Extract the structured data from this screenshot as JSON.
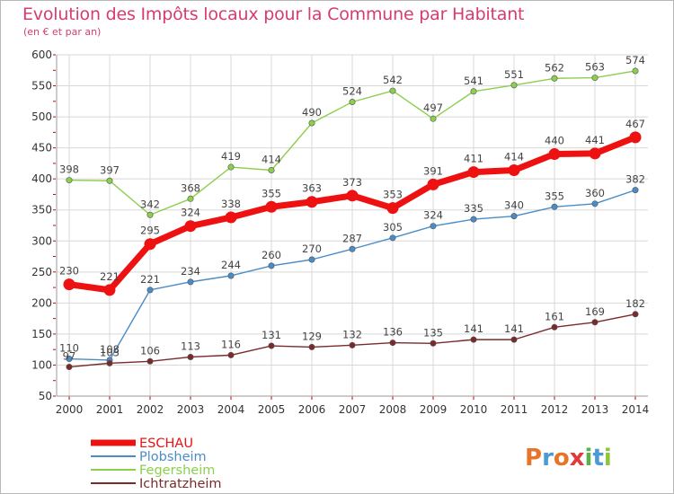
{
  "colors": {
    "title": "#d63b73",
    "background": "#ffffff",
    "grid": "#d8d8d8",
    "axis_ticks": "#cc0000"
  },
  "logo": {
    "text": "Proxiti",
    "letters": [
      {
        "ch": "P",
        "color": "#e8742a"
      },
      {
        "ch": "r",
        "color": "#4a9ad4"
      },
      {
        "ch": "o",
        "color": "#e8742a"
      },
      {
        "ch": "x",
        "color": "#e03a3a"
      },
      {
        "ch": "i",
        "color": "#5ab04a"
      },
      {
        "ch": "t",
        "color": "#4a9ad4"
      },
      {
        "ch": "i",
        "color": "#8cc63e"
      }
    ]
  },
  "chart_data": {
    "type": "line",
    "title": "Evolution des Impôts locaux pour la Commune par Habitant",
    "subtitle": "(en € et par an)",
    "xlabel": "",
    "ylabel": "",
    "x": [
      "2000",
      "2001",
      "2002",
      "2003",
      "2004",
      "2005",
      "2006",
      "2007",
      "2008",
      "2009",
      "2010",
      "2011",
      "2012",
      "2013",
      "2014"
    ],
    "ylim": [
      50,
      600
    ],
    "yticks": [
      50,
      100,
      150,
      200,
      250,
      300,
      350,
      400,
      450,
      500,
      550,
      600
    ],
    "grid": true,
    "legend_position": "bottom-left",
    "series": [
      {
        "name": "ESCHAU",
        "color": "#ee1111",
        "emphasis": true,
        "values": [
          230,
          221,
          295,
          324,
          338,
          355,
          363,
          373,
          353,
          391,
          411,
          414,
          440,
          441,
          467
        ]
      },
      {
        "name": "Plobsheim",
        "color": "#4a8cc8",
        "emphasis": false,
        "values": [
          110,
          108,
          221,
          234,
          244,
          260,
          270,
          287,
          305,
          324,
          335,
          340,
          355,
          360,
          382
        ]
      },
      {
        "name": "Fegersheim",
        "color": "#8ccf4d",
        "emphasis": false,
        "values": [
          398,
          397,
          342,
          368,
          419,
          414,
          490,
          524,
          542,
          497,
          541,
          551,
          562,
          563,
          574
        ]
      },
      {
        "name": "Ichtratzheim",
        "color": "#7a2a2a",
        "emphasis": false,
        "values": [
          97,
          103,
          106,
          113,
          116,
          131,
          129,
          132,
          136,
          135,
          141,
          141,
          161,
          169,
          182
        ]
      }
    ]
  }
}
